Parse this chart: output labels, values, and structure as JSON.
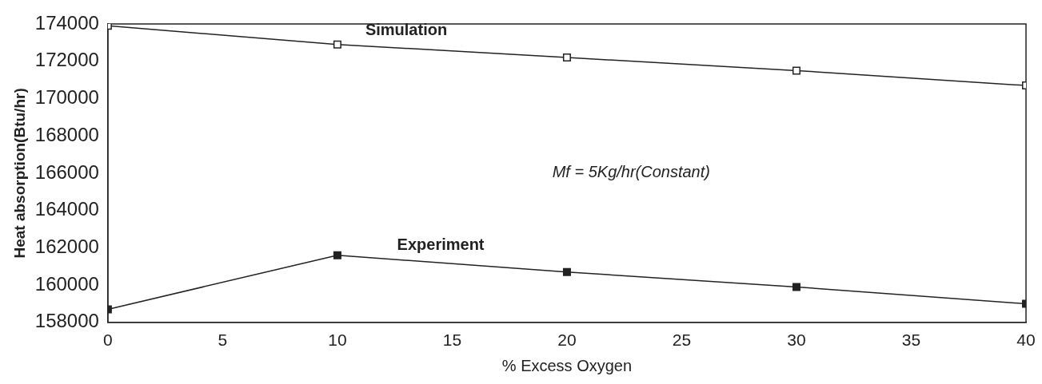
{
  "chart_data": {
    "type": "line",
    "x": [
      0,
      10,
      20,
      30,
      40
    ],
    "series": [
      {
        "name": "Simulation",
        "color": "#222222",
        "marker": "square",
        "values": [
          173900,
          172900,
          172200,
          171500,
          170700
        ]
      },
      {
        "name": "Experiment",
        "color": "#222222",
        "marker": "square",
        "values": [
          158700,
          161600,
          160700,
          159900,
          159000
        ]
      }
    ],
    "xlabel": "% Excess Oxygen",
    "ylabel": "Heat absorption(Btu/hr)",
    "annotations": [
      "Mf = 5Kg/hr(Constant)"
    ],
    "xlim": [
      0,
      40
    ],
    "xticks": [
      0,
      5,
      10,
      15,
      20,
      25,
      30,
      35,
      40
    ],
    "ylim": [
      158000,
      174000
    ],
    "yticks": [
      158000,
      160000,
      162000,
      164000,
      166000,
      168000,
      170000,
      172000,
      174000
    ],
    "grid": false,
    "legend": false,
    "line_style": "solid"
  }
}
